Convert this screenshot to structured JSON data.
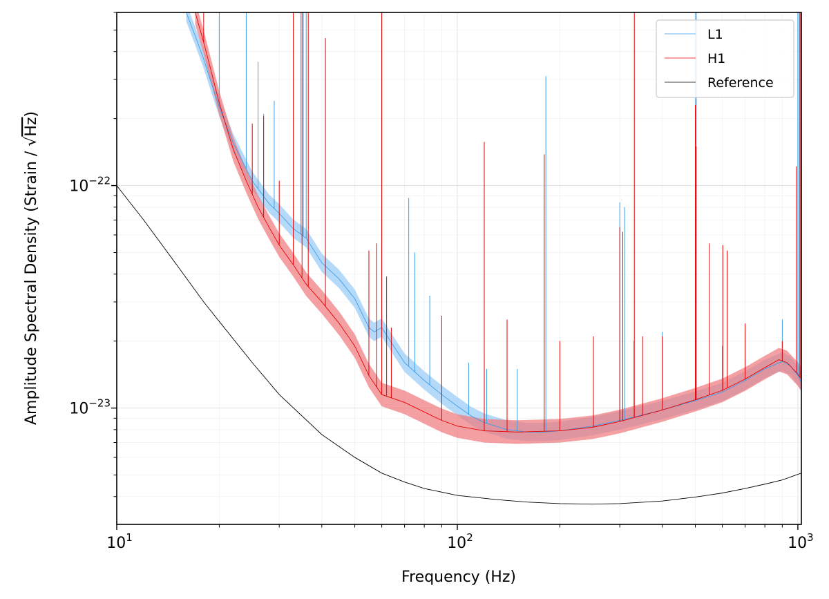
{
  "chart_data": {
    "type": "line",
    "title": "",
    "xlabel": "Frequency (Hz)",
    "ylabel_prefix": "Amplitude Spectral Density (Strain / ",
    "ylabel_unit": "Hz",
    "ylabel_suffix": ")",
    "xscale": "log",
    "yscale": "log",
    "xlim": [
      10,
      1024
    ],
    "ylim": [
      3e-24,
      6e-22
    ],
    "grid": true,
    "legend_position": "top-right",
    "x_ticks": [
      {
        "value": 10,
        "base": "10",
        "exp": "1"
      },
      {
        "value": 100,
        "base": "10",
        "exp": "2"
      },
      {
        "value": 1000,
        "base": "10",
        "exp": "3"
      }
    ],
    "y_ticks": [
      {
        "value": 1e-23,
        "base": "10",
        "exp": "−23"
      },
      {
        "value": 1e-22,
        "base": "10",
        "exp": "−22"
      }
    ],
    "series": [
      {
        "name": "L1",
        "color": "#3d9ee8",
        "band_color": "#9ccdf7",
        "band_factor": 1.1,
        "curve": [
          [
            16,
            6e-22
          ],
          [
            17,
            4.7e-22
          ],
          [
            18,
            3.7e-22
          ],
          [
            19,
            2.85e-22
          ],
          [
            20,
            2.25e-22
          ],
          [
            22,
            1.55e-22
          ],
          [
            25,
            1.05e-22
          ],
          [
            28,
            8.3e-23
          ],
          [
            30,
            7.5e-23
          ],
          [
            33,
            6.4e-23
          ],
          [
            36,
            5.8e-23
          ],
          [
            40,
            4.5e-23
          ],
          [
            45,
            3.8e-23
          ],
          [
            50,
            3.1e-23
          ],
          [
            55,
            2.3e-23
          ],
          [
            57,
            2.2e-23
          ],
          [
            60,
            2.3e-23
          ],
          [
            65,
            1.9e-23
          ],
          [
            70,
            1.6e-23
          ],
          [
            80,
            1.33e-23
          ],
          [
            90,
            1.15e-23
          ],
          [
            100,
            1.02e-23
          ],
          [
            110,
            9.2e-24
          ],
          [
            120,
            8.6e-24
          ],
          [
            140,
            8e-24
          ],
          [
            160,
            7.8e-24
          ],
          [
            180,
            7.8e-24
          ],
          [
            200,
            7.9e-24
          ],
          [
            250,
            8.3e-24
          ],
          [
            300,
            8.8e-24
          ],
          [
            400,
            9.8e-24
          ],
          [
            500,
            1.08e-23
          ],
          [
            600,
            1.18e-23
          ],
          [
            700,
            1.33e-23
          ],
          [
            800,
            1.5e-23
          ],
          [
            900,
            1.62e-23
          ],
          [
            950,
            1.55e-23
          ],
          [
            1000,
            1.4e-23
          ],
          [
            1024,
            1.3e-23
          ]
        ],
        "lines": [
          [
            20,
            6e-22
          ],
          [
            24,
            6e-22
          ],
          [
            26,
            3.6e-22
          ],
          [
            27,
            2.1e-22
          ],
          [
            29,
            2.4e-22
          ],
          [
            34.7,
            6e-22
          ],
          [
            35.3,
            6e-22
          ],
          [
            36,
            6e-22
          ],
          [
            60,
            6e-22
          ],
          [
            72,
            8.8e-23
          ],
          [
            75,
            5e-23
          ],
          [
            83,
            3.2e-23
          ],
          [
            108,
            1.6e-23
          ],
          [
            120,
            1.7e-23
          ],
          [
            122,
            1.5e-23
          ],
          [
            150,
            1.5e-23
          ],
          [
            182,
            3.1e-22
          ],
          [
            300,
            8.4e-23
          ],
          [
            310,
            8e-23
          ],
          [
            330,
            2e-23
          ],
          [
            400,
            2.2e-23
          ],
          [
            501,
            6e-22
          ],
          [
            503,
            6e-22
          ],
          [
            600,
            1.9e-23
          ],
          [
            700,
            2.2e-23
          ],
          [
            900,
            2.5e-23
          ],
          [
            1000,
            6e-22
          ],
          [
            1010,
            6e-22
          ]
        ]
      },
      {
        "name": "H1",
        "color": "#e60000",
        "band_color": "#f0787a",
        "band_factor": 1.13,
        "curve": [
          [
            17,
            6e-22
          ],
          [
            18,
            4.4e-22
          ],
          [
            19,
            3.2e-22
          ],
          [
            20,
            2.35e-22
          ],
          [
            22,
            1.45e-22
          ],
          [
            24,
            1.05e-22
          ],
          [
            26,
            8e-23
          ],
          [
            28,
            6.5e-23
          ],
          [
            30,
            5.4e-23
          ],
          [
            33,
            4.4e-23
          ],
          [
            36,
            3.6e-23
          ],
          [
            40,
            3e-23
          ],
          [
            45,
            2.4e-23
          ],
          [
            50,
            1.9e-23
          ],
          [
            55,
            1.4e-23
          ],
          [
            60,
            1.15e-23
          ],
          [
            70,
            1.06e-23
          ],
          [
            80,
            9.6e-24
          ],
          [
            90,
            8.8e-24
          ],
          [
            100,
            8.3e-24
          ],
          [
            120,
            7.9e-24
          ],
          [
            150,
            7.8e-24
          ],
          [
            200,
            7.9e-24
          ],
          [
            250,
            8.2e-24
          ],
          [
            300,
            8.7e-24
          ],
          [
            400,
            9.8e-24
          ],
          [
            500,
            1.09e-23
          ],
          [
            600,
            1.2e-23
          ],
          [
            700,
            1.35e-23
          ],
          [
            800,
            1.52e-23
          ],
          [
            880,
            1.65e-23
          ],
          [
            930,
            1.6e-23
          ],
          [
            1000,
            1.42e-23
          ],
          [
            1024,
            1.35e-23
          ]
        ],
        "lines": [
          [
            18,
            6e-22
          ],
          [
            25,
            1.9e-22
          ],
          [
            27,
            2.05e-22
          ],
          [
            30,
            1.05e-22
          ],
          [
            33,
            6e-22
          ],
          [
            35,
            6e-22
          ],
          [
            36.5,
            6e-22
          ],
          [
            41,
            4.6e-22
          ],
          [
            55,
            5.1e-23
          ],
          [
            58,
            5.5e-23
          ],
          [
            60,
            6e-22
          ],
          [
            62,
            3.9e-23
          ],
          [
            64,
            2.3e-23
          ],
          [
            90,
            2.6e-23
          ],
          [
            120,
            1.57e-22
          ],
          [
            140,
            2.5e-23
          ],
          [
            180,
            1.38e-22
          ],
          [
            200,
            2e-23
          ],
          [
            251,
            2.1e-23
          ],
          [
            300,
            6.5e-23
          ],
          [
            306,
            6.2e-23
          ],
          [
            331,
            6e-22
          ],
          [
            350,
            2.1e-23
          ],
          [
            400,
            2.1e-23
          ],
          [
            500,
            2.3e-22
          ],
          [
            503,
            1.5e-22
          ],
          [
            550,
            5.5e-23
          ],
          [
            602,
            5.4e-23
          ],
          [
            620,
            5.1e-23
          ],
          [
            700,
            2.4e-23
          ],
          [
            900,
            2e-23
          ],
          [
            990,
            1.22e-22
          ],
          [
            1015,
            6e-22
          ],
          [
            1022,
            6e-22
          ]
        ]
      },
      {
        "name": "Reference",
        "color": "#000000",
        "curve": [
          [
            10,
            1e-22
          ],
          [
            12,
            7e-23
          ],
          [
            15,
            4.4e-23
          ],
          [
            18,
            3e-23
          ],
          [
            20,
            2.45e-23
          ],
          [
            25,
            1.6e-23
          ],
          [
            30,
            1.15e-23
          ],
          [
            40,
            7.6e-24
          ],
          [
            50,
            6e-24
          ],
          [
            60,
            5.1e-24
          ],
          [
            70,
            4.65e-24
          ],
          [
            80,
            4.35e-24
          ],
          [
            100,
            4.05e-24
          ],
          [
            130,
            3.88e-24
          ],
          [
            160,
            3.78e-24
          ],
          [
            200,
            3.72e-24
          ],
          [
            250,
            3.7e-24
          ],
          [
            300,
            3.72e-24
          ],
          [
            400,
            3.82e-24
          ],
          [
            500,
            3.98e-24
          ],
          [
            600,
            4.15e-24
          ],
          [
            700,
            4.35e-24
          ],
          [
            800,
            4.55e-24
          ],
          [
            900,
            4.75e-24
          ],
          [
            1024,
            5.1e-24
          ]
        ]
      }
    ]
  }
}
